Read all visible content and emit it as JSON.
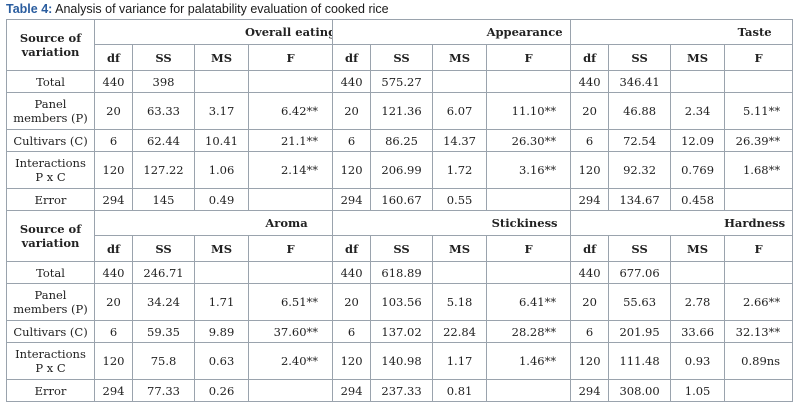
{
  "caption": {
    "label": "Table 4:",
    "text": "Analysis of variance for palatability evaluation of cooked rice"
  },
  "source_header": "Source of variation",
  "column_headers": [
    "df",
    "SS",
    "MS",
    "F"
  ],
  "sections": [
    {
      "groups": [
        "Overall eating-quality",
        "Appearance",
        "Taste"
      ],
      "rows": [
        {
          "source": "Total",
          "cells": [
            [
              "440",
              "398",
              "",
              ""
            ],
            [
              "440",
              "575.27",
              "",
              ""
            ],
            [
              "440",
              "346.41",
              "",
              ""
            ]
          ]
        },
        {
          "source": "Panel members (P)",
          "cells": [
            [
              "20",
              "63.33",
              "3.17",
              "6.42**"
            ],
            [
              "20",
              "121.36",
              "6.07",
              "11.10**"
            ],
            [
              "20",
              "46.88",
              "2.34",
              "5.11**"
            ]
          ]
        },
        {
          "source": "Cultivars (C)",
          "cells": [
            [
              "6",
              "62.44",
              "10.41",
              "21.1**"
            ],
            [
              "6",
              "86.25",
              "14.37",
              "26.30**"
            ],
            [
              "6",
              "72.54",
              "12.09",
              "26.39**"
            ]
          ]
        },
        {
          "source": "Interactions P x C",
          "cells": [
            [
              "120",
              "127.22",
              "1.06",
              "2.14**"
            ],
            [
              "120",
              "206.99",
              "1.72",
              "3.16**"
            ],
            [
              "120",
              "92.32",
              "0.769",
              "1.68**"
            ]
          ]
        },
        {
          "source": "Error",
          "cells": [
            [
              "294",
              "145",
              "0.49",
              ""
            ],
            [
              "294",
              "160.67",
              "0.55",
              ""
            ],
            [
              "294",
              "134.67",
              "0.458",
              ""
            ]
          ]
        }
      ]
    },
    {
      "groups": [
        "Aroma",
        "Stickiness",
        "Hardness"
      ],
      "rows": [
        {
          "source": "Total",
          "cells": [
            [
              "440",
              "246.71",
              "",
              ""
            ],
            [
              "440",
              "618.89",
              "",
              ""
            ],
            [
              "440",
              "677.06",
              "",
              ""
            ]
          ]
        },
        {
          "source": "Panel members (P)",
          "cells": [
            [
              "20",
              "34.24",
              "1.71",
              "6.51**"
            ],
            [
              "20",
              "103.56",
              "5.18",
              "6.41**"
            ],
            [
              "20",
              "55.63",
              "2.78",
              "2.66**"
            ]
          ]
        },
        {
          "source": "Cultivars (C)",
          "cells": [
            [
              "6",
              "59.35",
              "9.89",
              "37.60**"
            ],
            [
              "6",
              "137.02",
              "22.84",
              "28.28**"
            ],
            [
              "6",
              "201.95",
              "33.66",
              "32.13**"
            ]
          ]
        },
        {
          "source": "Interactions P x C",
          "cells": [
            [
              "120",
              "75.8",
              "0.63",
              "2.40**"
            ],
            [
              "120",
              "140.98",
              "1.17",
              "1.46**"
            ],
            [
              "120",
              "111.48",
              "0.93",
              "0.89ns"
            ]
          ]
        },
        {
          "source": "Error",
          "cells": [
            [
              "294",
              "77.33",
              "0.26",
              ""
            ],
            [
              "294",
              "237.33",
              "0.81",
              ""
            ],
            [
              "294",
              "308.00",
              "1.05",
              ""
            ]
          ]
        }
      ]
    }
  ],
  "colors": {
    "border": "#9aa3ad",
    "caption_label": "#2a5d9f"
  }
}
